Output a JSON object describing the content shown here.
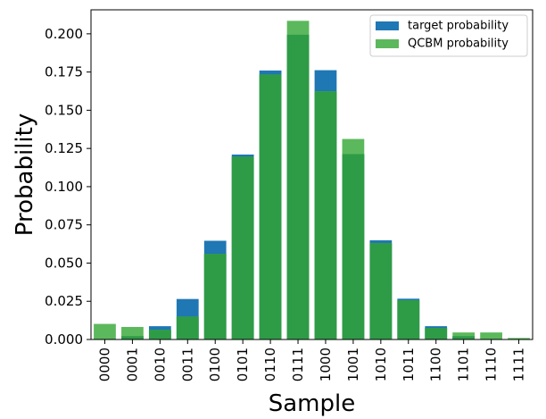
{
  "chart_data": {
    "type": "bar",
    "xlabel": "Sample",
    "ylabel": "Probability",
    "ylim": [
      0,
      0.2157
    ],
    "yticks": [
      0.0,
      0.025,
      0.05,
      0.075,
      0.1,
      0.125,
      0.15,
      0.175,
      0.2
    ],
    "ytick_labels": [
      "0.000",
      "0.025",
      "0.050",
      "0.075",
      "0.100",
      "0.125",
      "0.150",
      "0.175",
      "0.200"
    ],
    "categories": [
      "0000",
      "0001",
      "0010",
      "0011",
      "0100",
      "0101",
      "0110",
      "0111",
      "1000",
      "1001",
      "1010",
      "1011",
      "1100",
      "1101",
      "1110",
      "1111"
    ],
    "legend_position": "top-right",
    "overlap_color": "#2e9b47",
    "series": [
      {
        "name": "target probability",
        "color": "#1f77b4",
        "values": [
          0.0004,
          0.0022,
          0.0087,
          0.0265,
          0.0646,
          0.121,
          0.176,
          0.1994,
          0.1762,
          0.1213,
          0.0649,
          0.0267,
          0.0087,
          0.0022,
          0.0004,
          0.0001
        ]
      },
      {
        "name": "QCBM probability",
        "color": "#5cb85c",
        "values": [
          0.0102,
          0.0082,
          0.0064,
          0.015,
          0.0561,
          0.1196,
          0.1734,
          0.2085,
          0.1624,
          0.1312,
          0.0631,
          0.0257,
          0.0076,
          0.0046,
          0.0046,
          0.001
        ]
      }
    ]
  }
}
